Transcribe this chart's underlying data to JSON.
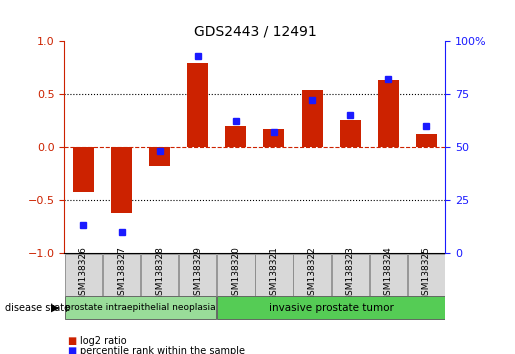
{
  "title": "GDS2443 / 12491",
  "samples": [
    "GSM138326",
    "GSM138327",
    "GSM138328",
    "GSM138329",
    "GSM138320",
    "GSM138321",
    "GSM138322",
    "GSM138323",
    "GSM138324",
    "GSM138325"
  ],
  "log2_ratio": [
    -0.42,
    -0.62,
    -0.18,
    0.79,
    0.2,
    0.17,
    0.54,
    0.25,
    0.63,
    0.12
  ],
  "percentile_rank": [
    13,
    10,
    48,
    93,
    62,
    57,
    72,
    65,
    82,
    60
  ],
  "bar_color": "#cc2200",
  "dot_color": "#1a1aff",
  "ylim_left": [
    -1,
    1
  ],
  "ylim_right": [
    0,
    100
  ],
  "yticks_left": [
    -1,
    -0.5,
    0,
    0.5,
    1
  ],
  "yticks_right": [
    0,
    25,
    50,
    75,
    100
  ],
  "hlines_dotted": [
    -0.5,
    0.5
  ],
  "group1_label": "prostate intraepithelial neoplasia",
  "group1_count": 4,
  "group1_color": "#99dd99",
  "group2_label": "invasive prostate tumor",
  "group2_count": 6,
  "group2_color": "#55cc55",
  "sample_box_color": "#d8d8d8",
  "disease_state_label": "disease state",
  "legend_bar_label": "log2 ratio",
  "legend_dot_label": "percentile rank within the sample"
}
